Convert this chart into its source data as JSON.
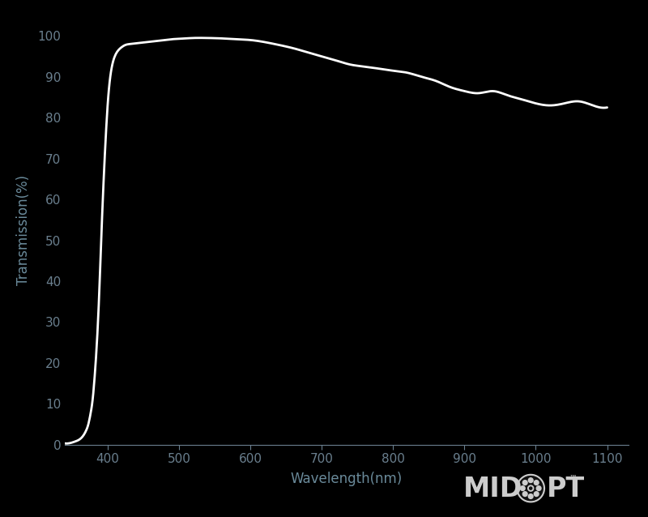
{
  "background_color": "#000000",
  "line_color": "#ffffff",
  "axis_color": "#aaaaaa",
  "tick_color": "#6a7f8e",
  "label_color": "#6a8a9a",
  "xlabel": "Wavelength(nm)",
  "ylabel": "Transmission(%)",
  "xlim": [
    340,
    1130
  ],
  "ylim": [
    0,
    105
  ],
  "xticks": [
    400,
    500,
    600,
    700,
    800,
    900,
    1000,
    1100
  ],
  "yticks": [
    0,
    10,
    20,
    30,
    40,
    50,
    60,
    70,
    80,
    90,
    100
  ],
  "xlabel_fontsize": 12,
  "ylabel_fontsize": 12,
  "tick_fontsize": 11,
  "line_width": 2.0,
  "wavelengths": [
    340,
    350,
    355,
    360,
    365,
    370,
    373,
    376,
    379,
    382,
    385,
    388,
    391,
    394,
    397,
    400,
    403,
    406,
    410,
    415,
    420,
    425,
    430,
    435,
    440,
    450,
    460,
    470,
    480,
    490,
    500,
    520,
    540,
    560,
    580,
    600,
    620,
    640,
    660,
    680,
    700,
    720,
    740,
    760,
    780,
    800,
    820,
    840,
    860,
    880,
    900,
    920,
    940,
    960,
    980,
    1000,
    1020,
    1040,
    1060,
    1080,
    1100
  ],
  "transmission": [
    0.3,
    0.5,
    0.8,
    1.2,
    2.0,
    3.5,
    5.0,
    7.5,
    11.0,
    17.0,
    25.0,
    36.0,
    50.0,
    63.0,
    74.0,
    83.0,
    89.0,
    92.5,
    95.0,
    96.5,
    97.3,
    97.8,
    98.0,
    98.1,
    98.2,
    98.4,
    98.6,
    98.8,
    99.0,
    99.2,
    99.3,
    99.5,
    99.5,
    99.4,
    99.2,
    99.0,
    98.5,
    97.8,
    97.0,
    96.0,
    95.0,
    94.0,
    93.0,
    92.5,
    92.0,
    91.5,
    91.0,
    90.0,
    89.0,
    87.5,
    86.5,
    86.0,
    86.5,
    85.5,
    84.5,
    83.5,
    83.0,
    83.5,
    84.0,
    83.0,
    82.5
  ],
  "logo_color": "#cccccc",
  "logo_fontsize": 24,
  "tm_fontsize": 7
}
